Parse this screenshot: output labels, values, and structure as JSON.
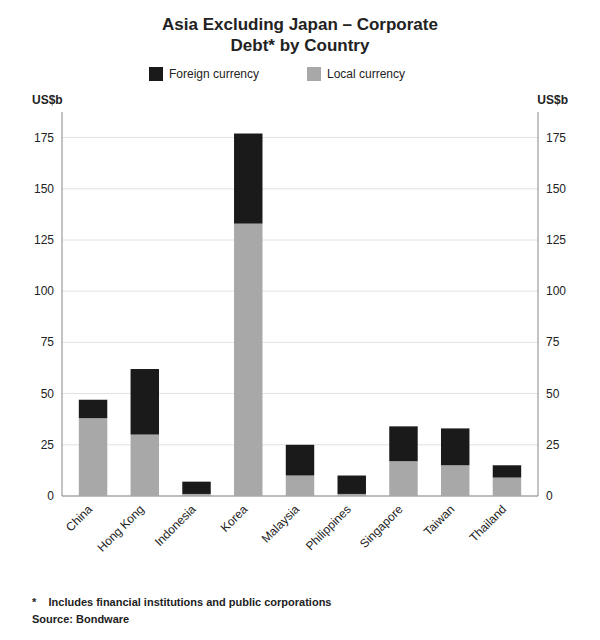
{
  "chart_data": {
    "type": "bar",
    "stacked": true,
    "title": "Asia Excluding Japan – Corporate\nDebt* by Country",
    "ylabel": "US$b",
    "y2label": "US$b",
    "categories": [
      "China",
      "Hong Kong",
      "Indonesia",
      "Korea",
      "Malaysia",
      "Philippines",
      "Singapore",
      "Taiwan",
      "Thailand"
    ],
    "series": [
      {
        "name": "Local currency",
        "color": "#a8a8a8",
        "values": [
          38,
          30,
          1,
          133,
          10,
          1,
          17,
          15,
          9
        ]
      },
      {
        "name": "Foreign currency",
        "color": "#1a1a1a",
        "values": [
          9,
          32,
          6,
          44,
          15,
          9,
          17,
          18,
          6
        ]
      }
    ],
    "ylim": [
      0,
      187.5
    ],
    "yticks": [
      0,
      25,
      50,
      75,
      100,
      125,
      150,
      175
    ],
    "y2lim": [
      0,
      187.5
    ],
    "y2ticks": [
      0,
      25,
      50,
      75,
      100,
      125,
      150,
      175
    ],
    "grid": true,
    "legend": "top",
    "annotations": [
      "*    Includes financial institutions and public corporations",
      "Source: Bondware"
    ]
  }
}
